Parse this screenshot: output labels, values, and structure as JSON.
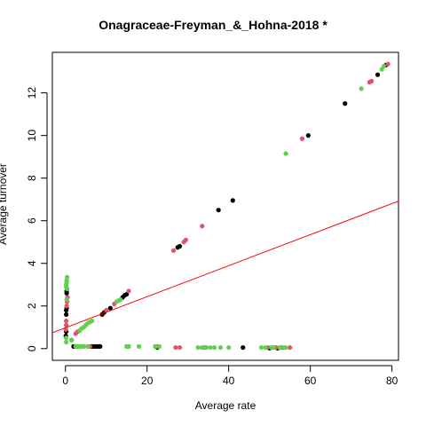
{
  "chart_data": {
    "type": "scatter",
    "title": "Onagraceae-Freyman_&_Hohna-2018 *",
    "xlabel": "Average rate",
    "ylabel": "Average turnover",
    "xlim": [
      -3.2,
      81.6
    ],
    "ylim": [
      -0.55,
      13.9
    ],
    "xticks": [
      0,
      20,
      40,
      60,
      80
    ],
    "yticks": [
      0,
      2,
      4,
      6,
      8,
      10,
      12
    ],
    "grid": false,
    "legend": "none",
    "colors": {
      "black": "#000000",
      "red": "#DF536B",
      "green": "#61D04F",
      "fit": "#FF0000"
    },
    "fit_line": {
      "intercept": 0.98,
      "slope": 0.0728
    },
    "series": [
      {
        "color": "black",
        "points": [
          [
            0.2,
            1.6
          ],
          [
            0.2,
            1.8
          ],
          [
            0.3,
            2.6
          ],
          [
            0.3,
            2.7
          ],
          [
            0.1,
            0.6
          ],
          [
            0.2,
            0.8
          ],
          [
            0.3,
            1.9
          ],
          [
            1.5,
            0.4
          ],
          [
            2.0,
            0.1
          ],
          [
            2.5,
            0.1
          ],
          [
            3.0,
            0.1
          ],
          [
            6.5,
            0.1
          ],
          [
            7.0,
            0.1
          ],
          [
            7.5,
            0.1
          ],
          [
            8.0,
            0.1
          ],
          [
            8.5,
            0.1
          ],
          [
            9.0,
            1.6
          ],
          [
            9.5,
            1.7
          ],
          [
            11.0,
            1.9
          ],
          [
            14.0,
            2.4
          ],
          [
            14.5,
            2.5
          ],
          [
            15.0,
            2.55
          ],
          [
            22.5,
            0.05
          ],
          [
            27.5,
            4.75
          ],
          [
            28.0,
            4.8
          ],
          [
            37.5,
            6.5
          ],
          [
            41.0,
            6.95
          ],
          [
            43.5,
            0.05
          ],
          [
            50.0,
            0.02
          ],
          [
            52.0,
            0.02
          ],
          [
            59.5,
            10.0
          ],
          [
            68.5,
            11.5
          ],
          [
            76.5,
            12.85
          ],
          [
            78.5,
            13.3
          ]
        ]
      },
      {
        "color": "red",
        "points": [
          [
            0.1,
            0.9
          ],
          [
            0.2,
            1.1
          ],
          [
            0.2,
            1.3
          ],
          [
            0.3,
            2.0
          ],
          [
            0.4,
            2.2
          ],
          [
            0.5,
            2.4
          ],
          [
            2.5,
            0.7
          ],
          [
            3.0,
            0.8
          ],
          [
            4.5,
            0.1
          ],
          [
            5.5,
            0.1
          ],
          [
            6.0,
            0.1
          ],
          [
            10.0,
            1.8
          ],
          [
            12.0,
            2.1
          ],
          [
            15.5,
            2.7
          ],
          [
            15.0,
            0.1
          ],
          [
            22.5,
            0.1
          ],
          [
            26.5,
            4.6
          ],
          [
            29.0,
            5.0
          ],
          [
            29.5,
            5.1
          ],
          [
            33.5,
            5.75
          ],
          [
            27.0,
            0.05
          ],
          [
            28.0,
            0.05
          ],
          [
            34.0,
            0.05
          ],
          [
            49.5,
            0.05
          ],
          [
            51.5,
            0.05
          ],
          [
            53.0,
            0.05
          ],
          [
            55.0,
            0.05
          ],
          [
            58.0,
            9.85
          ],
          [
            74.5,
            12.5
          ],
          [
            75.0,
            12.55
          ],
          [
            79.0,
            13.35
          ]
        ]
      },
      {
        "color": "green",
        "points": [
          [
            0.2,
            2.9
          ],
          [
            0.2,
            3.0
          ],
          [
            0.3,
            3.1
          ],
          [
            0.3,
            3.2
          ],
          [
            0.4,
            3.35
          ],
          [
            0.4,
            2.8
          ],
          [
            0.3,
            2.3
          ],
          [
            0.2,
            0.5
          ],
          [
            0.2,
            0.3
          ],
          [
            1.5,
            0.4
          ],
          [
            2.5,
            0.1
          ],
          [
            3.0,
            0.1
          ],
          [
            3.5,
            0.1
          ],
          [
            4.0,
            0.1
          ],
          [
            4.5,
            0.1
          ],
          [
            5.5,
            0.1
          ],
          [
            3.5,
            0.85
          ],
          [
            4.0,
            0.95
          ],
          [
            4.5,
            1.0
          ],
          [
            5.0,
            1.1
          ],
          [
            5.5,
            1.2
          ],
          [
            6.0,
            1.25
          ],
          [
            6.5,
            1.3
          ],
          [
            12.5,
            2.2
          ],
          [
            13.0,
            2.25
          ],
          [
            13.5,
            2.3
          ],
          [
            15.0,
            0.1
          ],
          [
            15.5,
            0.1
          ],
          [
            18.0,
            0.1
          ],
          [
            22.0,
            0.1
          ],
          [
            23.0,
            0.1
          ],
          [
            32.5,
            0.05
          ],
          [
            33.5,
            0.05
          ],
          [
            34.5,
            0.05
          ],
          [
            35.5,
            0.05
          ],
          [
            36.5,
            0.05
          ],
          [
            38.0,
            0.05
          ],
          [
            40.0,
            0.05
          ],
          [
            48.0,
            0.05
          ],
          [
            49.0,
            0.05
          ],
          [
            50.5,
            0.05
          ],
          [
            51.0,
            0.05
          ],
          [
            52.5,
            0.05
          ],
          [
            53.5,
            0.05
          ],
          [
            54.0,
            0.05
          ],
          [
            54.0,
            9.15
          ],
          [
            72.5,
            12.2
          ],
          [
            77.5,
            13.1
          ],
          [
            78.0,
            13.25
          ]
        ]
      }
    ]
  }
}
